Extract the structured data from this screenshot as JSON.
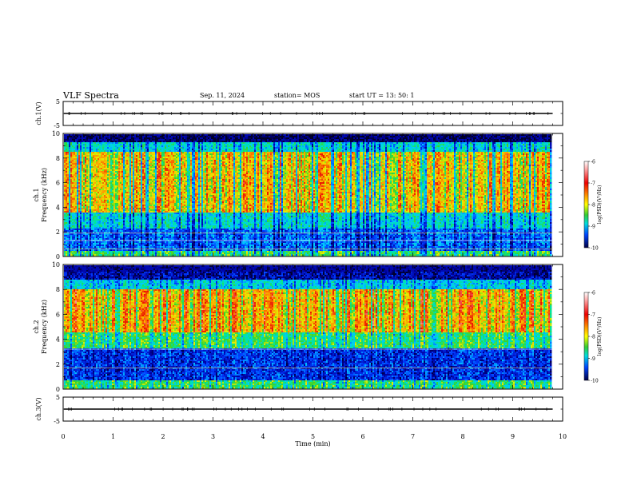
{
  "header": {
    "title": "VLF Spectra",
    "date": "Sep. 11, 2024",
    "station": "station= MOS",
    "start": "start  UT  =   13: 50: 1"
  },
  "chart_data": {
    "type": "heatmap",
    "xlabel": "Time  (min)",
    "xlim": [
      0,
      10
    ],
    "xticks": [
      "0",
      "1",
      "2",
      "3",
      "4",
      "5",
      "6",
      "7",
      "8",
      "9",
      "10"
    ],
    "data_end_min": 9.8,
    "panels": [
      {
        "name": "ch.1 waveform",
        "ylabel": "ch.1(V)",
        "ylim": [
          -5,
          5
        ],
        "yticks": [
          "5",
          "-5"
        ],
        "baseline": 0
      },
      {
        "name": "ch.1 spectrogram",
        "ylabel_1": "ch.1",
        "ylabel_2": "Frequency  (kHz)",
        "ylim": [
          0,
          10
        ],
        "yticks": [
          "0",
          "2",
          "4",
          "6",
          "8",
          "10"
        ],
        "colorbar": {
          "label": "log(PSD)(V²/Hz)",
          "range": [
            -10,
            -6
          ],
          "ticks": [
            "-6",
            "-7",
            "-8",
            "-9",
            "-10"
          ]
        },
        "lines_khz": [
          0.6,
          1.3,
          1.9
        ]
      },
      {
        "name": "ch.2 spectrogram",
        "ylabel_1": "ch.2",
        "ylabel_2": "Frequency  (kHz)",
        "ylim": [
          0,
          10
        ],
        "yticks": [
          "0",
          "2",
          "4",
          "6",
          "8",
          "10"
        ],
        "colorbar": {
          "label": "log(PSD)(V²/Hz)",
          "range": [
            -10,
            -6
          ],
          "ticks": [
            "-6",
            "-7",
            "-8",
            "-9",
            "-10"
          ]
        },
        "lines_khz": [
          1.7,
          3.2
        ]
      },
      {
        "name": "ch.3 waveform",
        "ylabel": "ch.3(V)",
        "ylim": [
          -5,
          5
        ],
        "yticks": [
          "5",
          "-5"
        ],
        "baseline": 0
      }
    ]
  }
}
